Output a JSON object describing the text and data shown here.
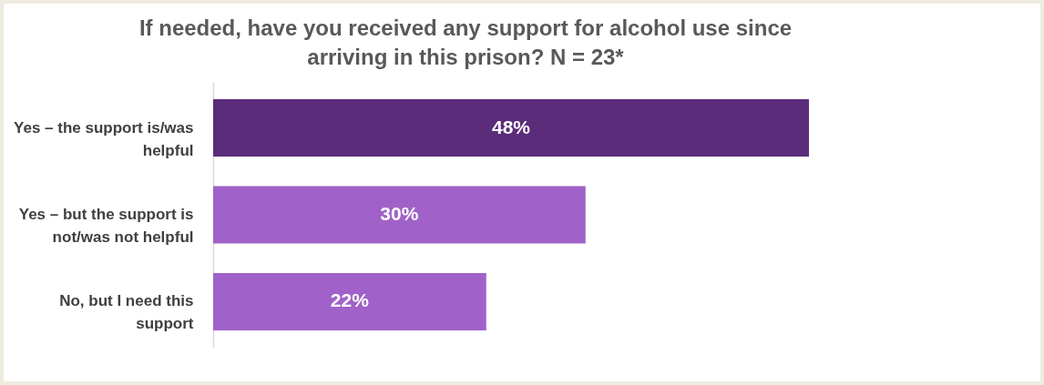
{
  "chart_data": {
    "type": "bar",
    "orientation": "horizontal",
    "title": "If needed, have you received any support for alcohol use since arriving in this prison? N = 23*",
    "categories": [
      "Yes – the support is/was helpful",
      "Yes – but the support is not/was not helpful",
      "No, but I need this support"
    ],
    "values": [
      48,
      30,
      22
    ],
    "colors": [
      "#5b2c7a",
      "#a062c8",
      "#a062c8"
    ],
    "value_labels": [
      "48%",
      "30%",
      "22%"
    ],
    "tick_labels": "y"
  }
}
